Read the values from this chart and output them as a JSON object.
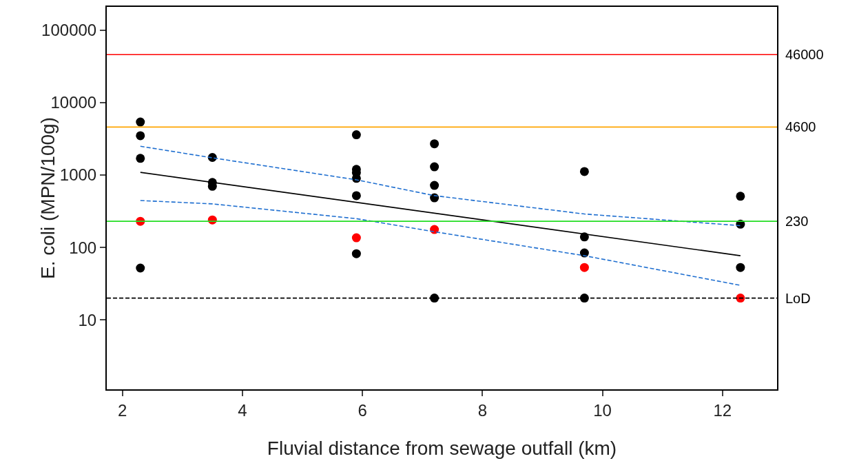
{
  "chart_data": {
    "type": "scatter",
    "xlabel": "Fluvial distance from sewage outfall (km)",
    "ylabel": "E. coli (MPN/100g)",
    "xlim": [
      1.74,
      12.91
    ],
    "xticks": [
      2,
      4,
      6,
      8,
      10,
      12
    ],
    "ylim": [
      1.1,
      210000
    ],
    "yticks": [
      10,
      100,
      1000,
      10000,
      100000
    ],
    "log": "y",
    "grid": false,
    "series": [
      {
        "color": "#000000",
        "marker": "circle",
        "x": [
          2.3,
          2.3,
          2.3,
          2.3,
          3.5,
          3.5,
          3.5,
          5.9,
          5.9,
          5.9,
          5.9,
          5.9,
          5.9,
          7.2,
          7.2,
          7.2,
          7.2,
          7.2,
          9.7,
          9.7,
          9.7,
          9.7,
          12.3,
          12.3,
          12.3
        ],
        "values": [
          5400,
          3500,
          1700,
          52,
          1750,
          790,
          700,
          3600,
          1200,
          1080,
          900,
          520,
          82,
          2700,
          1300,
          720,
          485,
          20,
          1120,
          140,
          84,
          20,
          510,
          210,
          53
        ]
      },
      {
        "color": "#ff0000",
        "marker": "circle",
        "x": [
          2.3,
          3.5,
          5.9,
          7.2,
          9.7,
          12.3
        ],
        "values": [
          230,
          240,
          136,
          177,
          53,
          20
        ]
      },
      {
        "type": "line",
        "color": "#000000",
        "line_style": "solid",
        "x": [
          2.3,
          12.3
        ],
        "values": [
          1090,
          77
        ]
      },
      {
        "type": "line",
        "color": "#1f6fd0",
        "line_style": "dashed",
        "x": [
          2.3,
          3.5,
          5.9,
          7.2,
          9.7,
          12.3
        ],
        "values": [
          2500,
          1730,
          860,
          520,
          290,
          200
        ]
      },
      {
        "type": "line",
        "color": "#1f6fd0",
        "line_style": "dashed",
        "x": [
          2.3,
          3.5,
          5.9,
          7.2,
          9.7,
          12.3
        ],
        "values": [
          445,
          400,
          250,
          165,
          77,
          30
        ]
      }
    ],
    "ref_lines": [
      {
        "axis": "y",
        "value": 46000,
        "label": "46000",
        "color": "#ff0000",
        "line_style": "solid"
      },
      {
        "axis": "y",
        "value": 4600,
        "label": "4600",
        "color": "#ffa500",
        "line_style": "solid"
      },
      {
        "axis": "y",
        "value": 230,
        "label": "230",
        "color": "#22dd22",
        "line_style": "solid"
      },
      {
        "axis": "y",
        "value": 20,
        "label": "LoD",
        "color": "#000000",
        "line_style": "dashed"
      }
    ]
  }
}
